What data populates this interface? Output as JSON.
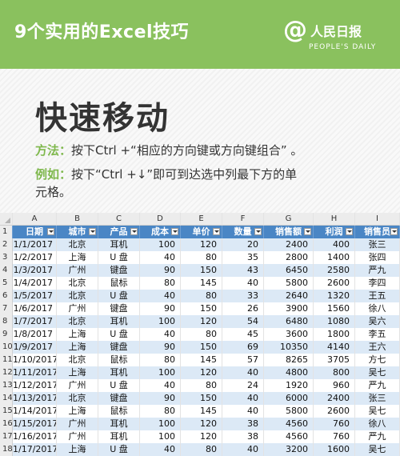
{
  "header": {
    "title": "9个实用的Excel技巧",
    "logo_at": "@",
    "logo_cn": "人民日报",
    "logo_en": "PEOPLE'S DAILY"
  },
  "main": {
    "title": "快速移动",
    "method_label": "方法：",
    "method_text": "按下Ctrl +“相应的方向键或方向键组合” 。",
    "example_label": "例如：",
    "example_text_1": "按下“Ctrl  +↓”即可到达选中列最下方的单",
    "example_text_2": "元格。"
  },
  "sheet": {
    "col_letters": [
      "A",
      "B",
      "C",
      "D",
      "E",
      "F",
      "G",
      "H",
      "I"
    ],
    "headers": [
      "日期",
      "城市",
      "产品",
      "成本",
      "单价",
      "数量",
      "销售额",
      "利润",
      "销售员"
    ],
    "rows": [
      [
        "1/1/2017",
        "北京",
        "耳机",
        "100",
        "120",
        "20",
        "2400",
        "400",
        "张三"
      ],
      [
        "1/2/2017",
        "上海",
        "U 盘",
        "40",
        "80",
        "35",
        "2800",
        "1400",
        "张四"
      ],
      [
        "1/3/2017",
        "广州",
        "键盘",
        "90",
        "150",
        "43",
        "6450",
        "2580",
        "严九"
      ],
      [
        "1/4/2017",
        "北京",
        "鼠标",
        "80",
        "145",
        "40",
        "5800",
        "2600",
        "李四"
      ],
      [
        "1/5/2017",
        "北京",
        "U 盘",
        "40",
        "80",
        "33",
        "2640",
        "1320",
        "王五"
      ],
      [
        "1/6/2017",
        "广州",
        "键盘",
        "90",
        "150",
        "26",
        "3900",
        "1560",
        "徐八"
      ],
      [
        "1/7/2017",
        "北京",
        "耳机",
        "100",
        "120",
        "54",
        "6480",
        "1080",
        "吴六"
      ],
      [
        "1/8/2017",
        "上海",
        "U 盘",
        "40",
        "80",
        "45",
        "3600",
        "1800",
        "李五"
      ],
      [
        "1/9/2017",
        "上海",
        "键盘",
        "90",
        "150",
        "69",
        "10350",
        "4140",
        "王六"
      ],
      [
        "1/10/2017",
        "北京",
        "鼠标",
        "80",
        "145",
        "57",
        "8265",
        "3705",
        "方七"
      ],
      [
        "1/11/2017",
        "上海",
        "耳机",
        "100",
        "120",
        "40",
        "4800",
        "800",
        "吴七"
      ],
      [
        "1/12/2017",
        "广州",
        "U 盘",
        "40",
        "80",
        "24",
        "1920",
        "960",
        "严九"
      ],
      [
        "1/13/2017",
        "北京",
        "键盘",
        "90",
        "150",
        "40",
        "6000",
        "2400",
        "张三"
      ],
      [
        "1/14/2017",
        "上海",
        "鼠标",
        "80",
        "145",
        "40",
        "5800",
        "2600",
        "吴七"
      ],
      [
        "1/15/2017",
        "广州",
        "耳机",
        "100",
        "120",
        "38",
        "4560",
        "760",
        "徐八"
      ],
      [
        "1/16/2017",
        "广州",
        "耳机",
        "100",
        "120",
        "38",
        "4560",
        "760",
        "严九"
      ],
      [
        "1/17/2017",
        "上海",
        "U 盘",
        "40",
        "80",
        "40",
        "3200",
        "1600",
        "吴七"
      ]
    ]
  }
}
